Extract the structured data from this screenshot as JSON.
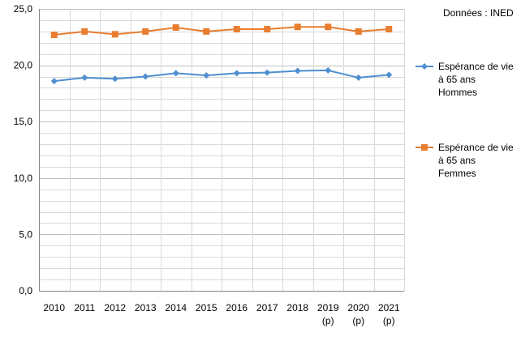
{
  "source_note": "Données : INED",
  "chart_data": {
    "type": "line",
    "categories": [
      [
        "2010"
      ],
      [
        "2011"
      ],
      [
        "2012"
      ],
      [
        "2013"
      ],
      [
        "2014"
      ],
      [
        "2015"
      ],
      [
        "2016"
      ],
      [
        "2017"
      ],
      [
        "2018"
      ],
      [
        "2019",
        "(p)"
      ],
      [
        "2020",
        "(p)"
      ],
      [
        "2021",
        "(p)"
      ]
    ],
    "series": [
      {
        "name_lines": [
          "Espérance de vie",
          "à 65 ans",
          "Hommes"
        ],
        "color": "#4F8FD0",
        "marker": "diamond",
        "values": [
          18.6,
          18.9,
          18.8,
          19.0,
          19.3,
          19.1,
          19.3,
          19.35,
          19.5,
          19.55,
          18.9,
          19.15
        ]
      },
      {
        "name_lines": [
          "Espérance de vie",
          "à 65 ans",
          "Femmes"
        ],
        "color": "#E87D2F",
        "marker": "square",
        "values": [
          22.7,
          23.0,
          22.75,
          23.0,
          23.35,
          23.0,
          23.2,
          23.2,
          23.4,
          23.4,
          23.0,
          23.2
        ]
      }
    ],
    "ylim": [
      0,
      25
    ],
    "ytick_labels": [
      "0,0",
      "5,0",
      "10,0",
      "15,0",
      "20,0",
      "25,0"
    ],
    "gridlines": true,
    "legend": "right"
  }
}
